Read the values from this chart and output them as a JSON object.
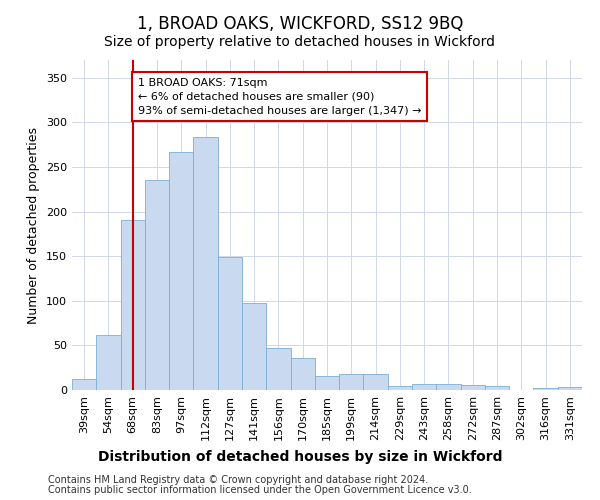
{
  "title": "1, BROAD OAKS, WICKFORD, SS12 9BQ",
  "subtitle": "Size of property relative to detached houses in Wickford",
  "xlabel": "Distribution of detached houses by size in Wickford",
  "ylabel": "Number of detached properties",
  "categories": [
    "39sqm",
    "54sqm",
    "68sqm",
    "83sqm",
    "97sqm",
    "112sqm",
    "127sqm",
    "141sqm",
    "156sqm",
    "170sqm",
    "185sqm",
    "199sqm",
    "214sqm",
    "229sqm",
    "243sqm",
    "258sqm",
    "272sqm",
    "287sqm",
    "302sqm",
    "316sqm",
    "331sqm"
  ],
  "values": [
    12,
    62,
    191,
    236,
    267,
    284,
    149,
    97,
    47,
    36,
    16,
    18,
    18,
    4,
    7,
    7,
    6,
    5,
    0,
    2,
    3
  ],
  "bar_color": "#c8d9f0",
  "bar_edge_color": "#7bafd4",
  "vline_x_index": 2,
  "vline_color": "#cc0000",
  "annotation_line1": "1 BROAD OAKS: 71sqm",
  "annotation_line2": "← 6% of detached houses are smaller (90)",
  "annotation_line3": "93% of semi-detached houses are larger (1,347) →",
  "annotation_box_color": "#ffffff",
  "annotation_box_edge_color": "#cc0000",
  "ylim": [
    0,
    370
  ],
  "yticks": [
    0,
    50,
    100,
    150,
    200,
    250,
    300,
    350
  ],
  "footer_line1": "Contains HM Land Registry data © Crown copyright and database right 2024.",
  "footer_line2": "Contains public sector information licensed under the Open Government Licence v3.0.",
  "background_color": "#ffffff",
  "grid_color": "#d0d8e8",
  "title_fontsize": 12,
  "subtitle_fontsize": 10,
  "axis_label_fontsize": 9,
  "tick_fontsize": 8,
  "footer_fontsize": 7
}
